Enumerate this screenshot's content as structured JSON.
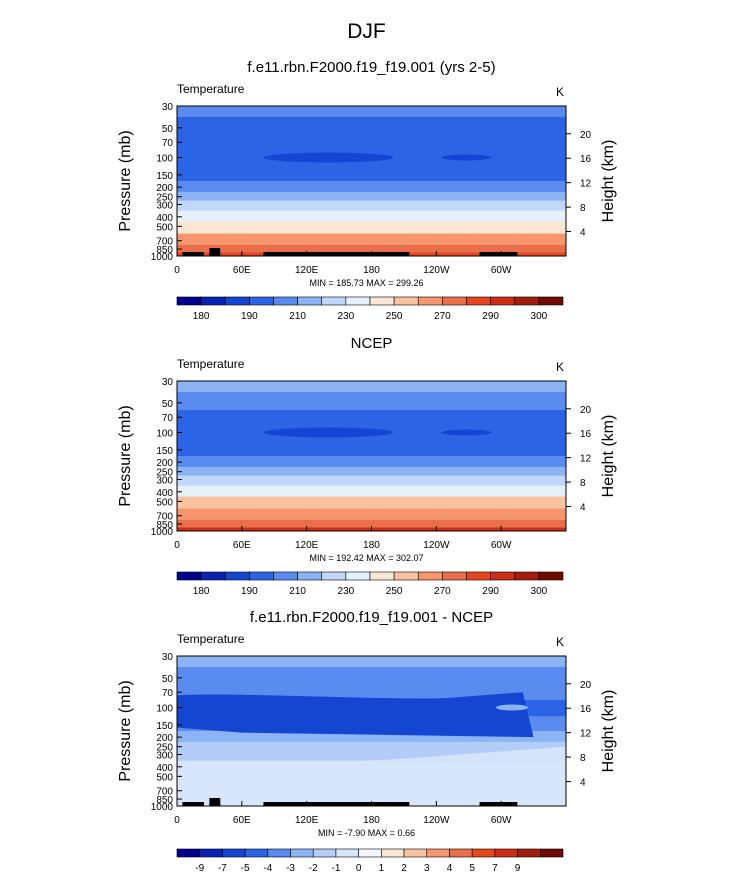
{
  "page_title": "DJF",
  "contour_colors": [
    "#00008c",
    "#0a22b4",
    "#1446d2",
    "#2d64e6",
    "#5a8cf0",
    "#8cb4f5",
    "#bed7fa",
    "#e6f0fa",
    "#fae6d2",
    "#fac3a0",
    "#f5966e",
    "#eb6e4b",
    "#e6461e",
    "#cd2d14",
    "#a01e0a",
    "#6e0a00"
  ],
  "diff_colors": [
    "#00008c",
    "#0a22b4",
    "#1446d2",
    "#2d64e6",
    "#5a8cf0",
    "#8cb4f5",
    "#b4cdf8",
    "#d7e6fa",
    "#f5f5ff",
    "#fae6d2",
    "#fac3a0",
    "#f5966e",
    "#eb6e4b",
    "#e6461e",
    "#cd2d14",
    "#a01e0a",
    "#6e0a00"
  ],
  "chart_data": [
    {
      "type": "heatmap",
      "title": "f.e11.rbn.F2000.f19_f19.001 (yrs 2-5)",
      "left_label": "Temperature",
      "right_label": "K",
      "ylabel": "Pressure (mb)",
      "ylabel_right": "Height (km)",
      "x_ticks": [
        "0",
        "60E",
        "120E",
        "180",
        "120W",
        "60W"
      ],
      "y_ticks": [
        "30",
        "50",
        "70",
        "100",
        "150",
        "200",
        "250",
        "300",
        "400",
        "500",
        "700",
        "850",
        "1000"
      ],
      "height_ticks": [
        "20",
        "16",
        "12",
        "8",
        "4"
      ],
      "min_max": "MIN = 185.73  MAX = 299.26",
      "colorbar_labels": [
        "180",
        "190",
        "210",
        "230",
        "250",
        "270",
        "290",
        "300"
      ],
      "ylim": [
        1000,
        30
      ],
      "xlim": [
        0,
        360
      ],
      "bands": [
        {
          "p": 30,
          "value": 215
        },
        {
          "p": 50,
          "value": 208
        },
        {
          "p": 70,
          "value": 203
        },
        {
          "p": 100,
          "value": 200
        },
        {
          "p": 150,
          "value": 205
        },
        {
          "p": 200,
          "value": 212
        },
        {
          "p": 250,
          "value": 222
        },
        {
          "p": 300,
          "value": 232
        },
        {
          "p": 400,
          "value": 246
        },
        {
          "p": 500,
          "value": 258
        },
        {
          "p": 700,
          "value": 274
        },
        {
          "p": 850,
          "value": 285
        },
        {
          "p": 1000,
          "value": 292
        }
      ]
    },
    {
      "type": "heatmap",
      "title": "NCEP",
      "left_label": "Temperature",
      "right_label": "K",
      "ylabel": "Pressure (mb)",
      "ylabel_right": "Height (km)",
      "x_ticks": [
        "0",
        "60E",
        "120E",
        "180",
        "120W",
        "60W"
      ],
      "y_ticks": [
        "30",
        "50",
        "70",
        "100",
        "150",
        "200",
        "250",
        "300",
        "400",
        "500",
        "700",
        "850",
        "1000"
      ],
      "height_ticks": [
        "20",
        "16",
        "12",
        "8",
        "4"
      ],
      "min_max": "MIN = 192.42  MAX = 302.07",
      "colorbar_labels": [
        "180",
        "190",
        "210",
        "230",
        "250",
        "270",
        "290",
        "300"
      ],
      "ylim": [
        1000,
        30
      ],
      "xlim": [
        0,
        360
      ],
      "bands": [
        {
          "p": 30,
          "value": 222
        },
        {
          "p": 50,
          "value": 214
        },
        {
          "p": 70,
          "value": 207
        },
        {
          "p": 100,
          "value": 203
        },
        {
          "p": 150,
          "value": 208
        },
        {
          "p": 200,
          "value": 214
        },
        {
          "p": 250,
          "value": 224
        },
        {
          "p": 300,
          "value": 234
        },
        {
          "p": 400,
          "value": 248
        },
        {
          "p": 500,
          "value": 260
        },
        {
          "p": 700,
          "value": 276
        },
        {
          "p": 850,
          "value": 287
        },
        {
          "p": 1000,
          "value": 295
        }
      ]
    },
    {
      "type": "heatmap",
      "title": "f.e11.rbn.F2000.f19_f19.001 - NCEP",
      "left_label": "Temperature",
      "right_label": "K",
      "ylabel": "Pressure (mb)",
      "ylabel_right": "Height (km)",
      "x_ticks": [
        "0",
        "60E",
        "120E",
        "180",
        "120W",
        "60W"
      ],
      "y_ticks": [
        "30",
        "50",
        "70",
        "100",
        "150",
        "200",
        "250",
        "300",
        "400",
        "500",
        "700",
        "850",
        "1000"
      ],
      "height_ticks": [
        "20",
        "16",
        "12",
        "8",
        "4"
      ],
      "min_max": "MIN =  -7.90  MAX =   0.66",
      "colorbar_labels": [
        "-9",
        "-7",
        "-5",
        "-4",
        "-3",
        "-2",
        "-1",
        "0",
        "1",
        "2",
        "3",
        "4",
        "5",
        "7",
        "9"
      ],
      "ylim": [
        1000,
        30
      ],
      "xlim": [
        0,
        360
      ],
      "bands": [
        {
          "p": 30,
          "value": -3
        },
        {
          "p": 50,
          "value": -4
        },
        {
          "p": 70,
          "value": -4
        },
        {
          "p": 100,
          "value": -5
        },
        {
          "p": 150,
          "value": -4
        },
        {
          "p": 200,
          "value": -3
        },
        {
          "p": 250,
          "value": -2
        },
        {
          "p": 300,
          "value": -2
        },
        {
          "p": 400,
          "value": -1
        },
        {
          "p": 500,
          "value": -1
        },
        {
          "p": 700,
          "value": -1
        },
        {
          "p": 850,
          "value": -1
        },
        {
          "p": 1000,
          "value": -1
        }
      ]
    }
  ]
}
